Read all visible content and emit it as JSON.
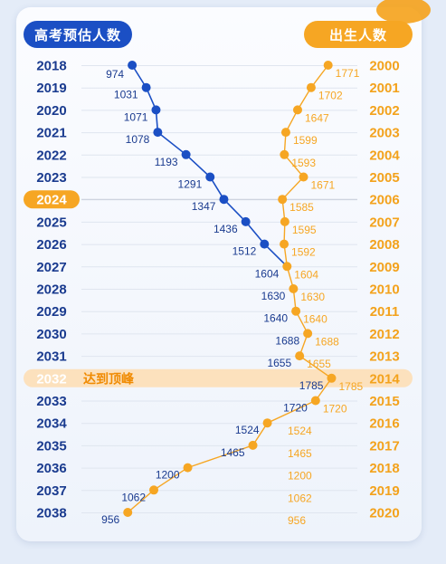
{
  "header": {
    "left_label": "高考预估人数",
    "right_label": "出生人数"
  },
  "colors": {
    "exam_blue": "#1b4fc4",
    "birth_orange": "#f6a623",
    "highlight_band": "#fce1bd",
    "year_text_blue": "#1a3b8f",
    "year_text_orange": "#f3a21c"
  },
  "chart_data": {
    "type": "line",
    "highlight": {
      "exam_year": "2024",
      "peak_year": "2032",
      "peak_label": "达到顶峰"
    },
    "exam_years": [
      "2018",
      "2019",
      "2020",
      "2021",
      "2022",
      "2023",
      "2024",
      "2025",
      "2026",
      "2027",
      "2028",
      "2029",
      "2030",
      "2031",
      "2032",
      "2033",
      "2034",
      "2035",
      "2036",
      "2037",
      "2038"
    ],
    "birth_years": [
      "2000",
      "2001",
      "2002",
      "2003",
      "2004",
      "2005",
      "2006",
      "2007",
      "2008",
      "2009",
      "2010",
      "2011",
      "2012",
      "2013",
      "2014",
      "2015",
      "2016",
      "2017",
      "2018",
      "2019",
      "2020"
    ],
    "series": [
      {
        "values": [
          974,
          1031,
          1071,
          1078,
          1193,
          1291,
          1347,
          1436,
          1512,
          1604,
          1630,
          1640,
          1688,
          1655,
          1785,
          1720,
          1524,
          1465,
          1200,
          1062,
          956
        ]
      },
      {
        "values": [
          1771,
          1702,
          1647,
          1599,
          1593,
          1671,
          1585,
          1595,
          1592,
          1604,
          1630,
          1640,
          1688,
          1655,
          1785,
          1720,
          1524,
          1465,
          1200,
          1062,
          956
        ]
      }
    ],
    "x_range": [
      900,
      1820
    ]
  }
}
